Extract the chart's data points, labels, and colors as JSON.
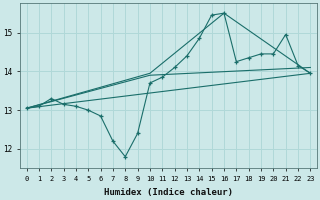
{
  "xlabel": "Humidex (Indice chaleur)",
  "bg_color": "#cce8e8",
  "grid_color": "#b0d8d8",
  "line_color": "#1a6e6a",
  "xlim": [
    -0.5,
    23.5
  ],
  "ylim": [
    11.5,
    15.75
  ],
  "yticks": [
    12,
    13,
    14,
    15
  ],
  "xticks": [
    0,
    1,
    2,
    3,
    4,
    5,
    6,
    7,
    8,
    9,
    10,
    11,
    12,
    13,
    14,
    15,
    16,
    17,
    18,
    19,
    20,
    21,
    22,
    23
  ],
  "curve_x": [
    0,
    1,
    2,
    3,
    4,
    5,
    6,
    7,
    8,
    9,
    10,
    11,
    12,
    13,
    14,
    15,
    16,
    17,
    18,
    19,
    20,
    21,
    22,
    23
  ],
  "curve_y": [
    13.05,
    13.1,
    13.3,
    13.15,
    13.1,
    13.0,
    12.85,
    12.2,
    11.8,
    12.4,
    13.7,
    13.85,
    14.1,
    14.4,
    14.85,
    15.45,
    15.5,
    14.25,
    14.35,
    14.45,
    14.45,
    14.95,
    14.15,
    13.95
  ],
  "line1": [
    [
      0,
      13.05
    ],
    [
      23,
      13.95
    ]
  ],
  "line2": [
    [
      0,
      13.05
    ],
    [
      10,
      13.9
    ],
    [
      23,
      14.1
    ]
  ],
  "line3": [
    [
      0,
      13.05
    ],
    [
      10,
      13.95
    ],
    [
      16,
      15.5
    ],
    [
      23,
      13.95
    ]
  ]
}
